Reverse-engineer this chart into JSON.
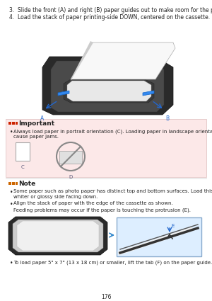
{
  "bg_color": "#f5f5f5",
  "page_number": "176",
  "step3_text": "3.  Slide the front (A) and right (B) paper guides out to make room for the paper.",
  "step4_text": "4.  Load the stack of paper printing-side DOWN, centered on the cassette.",
  "important_label": "Important",
  "important_bullet": "Always load paper in portrait orientation (C). Loading paper in landscape orientation (D) may\ncause paper jams.",
  "label_c": "C",
  "label_d": "D",
  "note_label": "Note",
  "note_bullet1": "Some paper such as photo paper has distinct top and bottom surfaces. Load this paper with the\nwhiter or glossy side facing down.",
  "note_bullet2": "Align the stack of paper with the edge of the cassette as shown.",
  "note_feeding": "Feeding problems may occur if the paper is touching the protrusion (E).",
  "label_e": "E",
  "note_bullet3": "To load paper 5\" x 7\" (13 x 18 cm) or smaller, lift the tab (F) on the paper guide.",
  "important_bg": "#fce8e8",
  "icon_red": "#cc2200",
  "icon_orange": "#cc6600",
  "text_color": "#444444",
  "text_color_dark": "#222222",
  "small_font": 5.5,
  "header_font": 6.5
}
